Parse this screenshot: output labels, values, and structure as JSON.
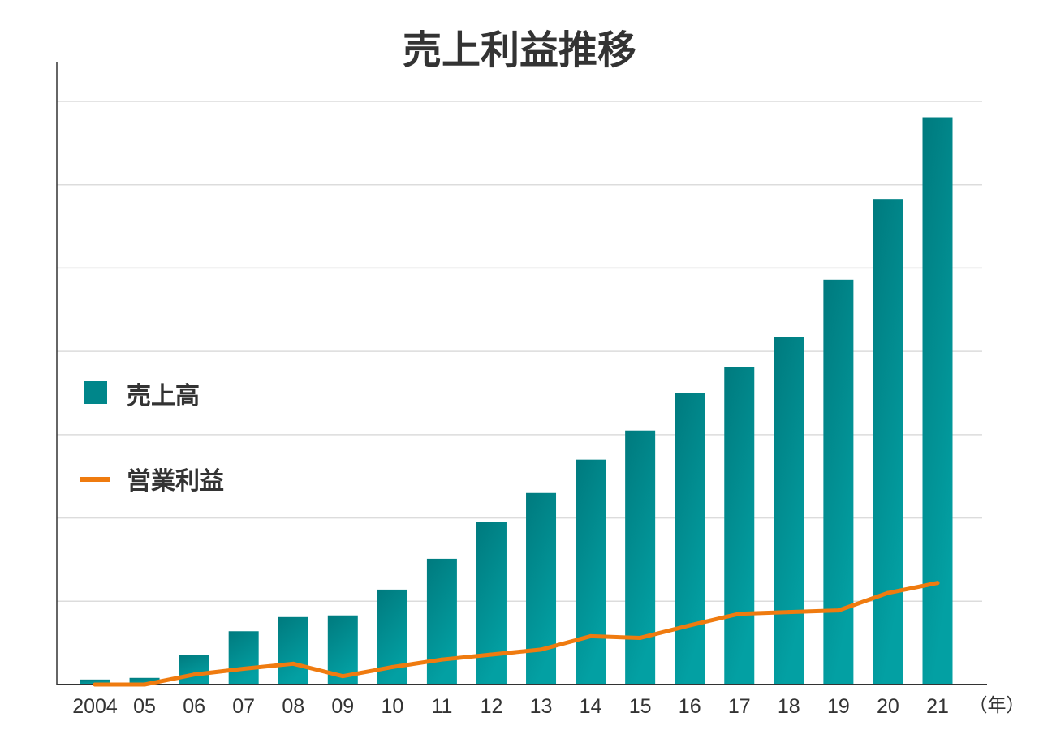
{
  "chart_data": {
    "type": "bar",
    "title": "売上利益推移",
    "x_unit_label": "（年）",
    "categories": [
      "2004",
      "05",
      "06",
      "07",
      "08",
      "09",
      "10",
      "11",
      "12",
      "13",
      "14",
      "15",
      "16",
      "17",
      "18",
      "19",
      "20",
      "21"
    ],
    "ylim": [
      0,
      7
    ],
    "y_tick_labels_shown": false,
    "grid": true,
    "legend_position": "left-middle",
    "series": [
      {
        "name": "売上高",
        "type": "bar",
        "color": "#00868a",
        "values": [
          0.06,
          0.08,
          0.36,
          0.64,
          0.81,
          0.83,
          1.14,
          1.51,
          1.95,
          2.3,
          2.7,
          3.05,
          3.5,
          3.81,
          4.17,
          4.86,
          5.83,
          6.81
        ]
      },
      {
        "name": "営業利益",
        "type": "line",
        "color": "#ef7b0f",
        "values": [
          0.0,
          0.0,
          0.12,
          0.19,
          0.25,
          0.1,
          0.21,
          0.3,
          0.36,
          0.42,
          0.58,
          0.56,
          0.71,
          0.85,
          0.87,
          0.89,
          1.1,
          1.22
        ]
      }
    ]
  }
}
